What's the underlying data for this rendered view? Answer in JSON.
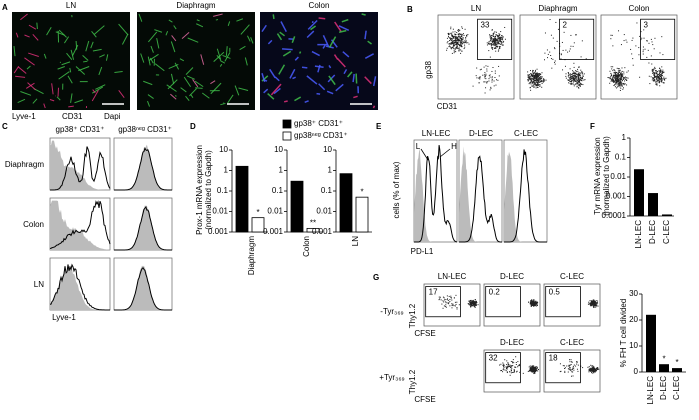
{
  "panels": {
    "A": {
      "letter": "A",
      "titles": [
        "LN",
        "Diaphragm",
        "Colon"
      ],
      "legend": [
        {
          "text": "Lyve-1",
          "color": "#e0307a"
        },
        {
          "text": "CD31",
          "color": "#3fbf4a"
        },
        {
          "text": "Dapi",
          "color": "#4a5cff"
        }
      ]
    },
    "B": {
      "letter": "B",
      "titles": [
        "LN",
        "Diaphragm",
        "Colon"
      ],
      "gate_values": [
        33,
        2,
        3
      ],
      "ylabel": "gp38",
      "xlabel": "CD31"
    },
    "C": {
      "letter": "C",
      "columns": [
        "gp38⁺ CD31⁺",
        "gp38ⁿᵉᵍ CD31⁺"
      ],
      "rows": [
        "Diaphragm",
        "Colon",
        "LN"
      ],
      "xlabel": "Lyve-1"
    },
    "D": {
      "letter": "D",
      "chart_data": {
        "type": "bar",
        "ylabel": [
          "Prox-1 mRNA expression",
          "(normalized to Gapdh)"
        ],
        "categories": [
          "Diaphragm",
          "Colon",
          "LN"
        ],
        "series": [
          {
            "name": "gp38⁺ CD31⁺",
            "color": "#000000",
            "values": [
              1.6,
              0.3,
              0.7
            ]
          },
          {
            "name": "gp38ⁿᵉᵍ CD31⁺",
            "color": "#ffffff",
            "values": [
              0.005,
              0.0015,
              0.05
            ],
            "annotations": [
              "*",
              "**",
              "*"
            ]
          }
        ],
        "log": true,
        "ylim": [
          0.001,
          10
        ],
        "yticks": [
          0.001,
          0.01,
          0.1,
          1,
          10
        ]
      }
    },
    "E": {
      "letter": "E",
      "titles": [
        "LN-LEC",
        "D-LEC",
        "C-LEC"
      ],
      "peak_labels": [
        "L",
        "H"
      ],
      "ylabel": "cells (% of max)",
      "xlabel": "PD-L1"
    },
    "F": {
      "letter": "F",
      "chart_data": {
        "type": "bar",
        "ylabel": [
          "Tyr mRNA expression",
          "(normalized to Gapdh)"
        ],
        "categories": [
          "LN-LEC",
          "D-LEC",
          "C-LEC"
        ],
        "values": [
          0.025,
          0.0015,
          0.00012
        ],
        "color": "#000000",
        "log": true,
        "ylim": [
          0.0001,
          1
        ],
        "yticks": [
          0.0001,
          0.001,
          0.01,
          0.1,
          1
        ]
      }
    },
    "G": {
      "letter": "G",
      "rows": [
        {
          "label": "-Tyr₃₆₉",
          "titles": [
            "LN-LEC",
            "D-LEC",
            "C-LEC"
          ],
          "gate_values": [
            17,
            0.2,
            0.5
          ]
        },
        {
          "label": "+Tyr₃₆₉",
          "titles": [
            "D-LEC",
            "C-LEC"
          ],
          "gate_values": [
            32,
            18
          ]
        }
      ],
      "ylabel": "Thy1.2",
      "xlabel": "CFSE",
      "chart_data": {
        "type": "bar",
        "ylabel": "% FH T cell divided",
        "categories": [
          "LN-LEC",
          "D-LEC",
          "C-LEC"
        ],
        "values": [
          22,
          3,
          1.5
        ],
        "color": "#000000",
        "log": false,
        "ylim": [
          0,
          30
        ],
        "yticks": [
          0,
          10,
          20,
          30
        ],
        "annotations": [
          {
            "category": "D-LEC",
            "text": "*"
          },
          {
            "category": "C-LEC",
            "text": "*"
          }
        ]
      }
    }
  }
}
